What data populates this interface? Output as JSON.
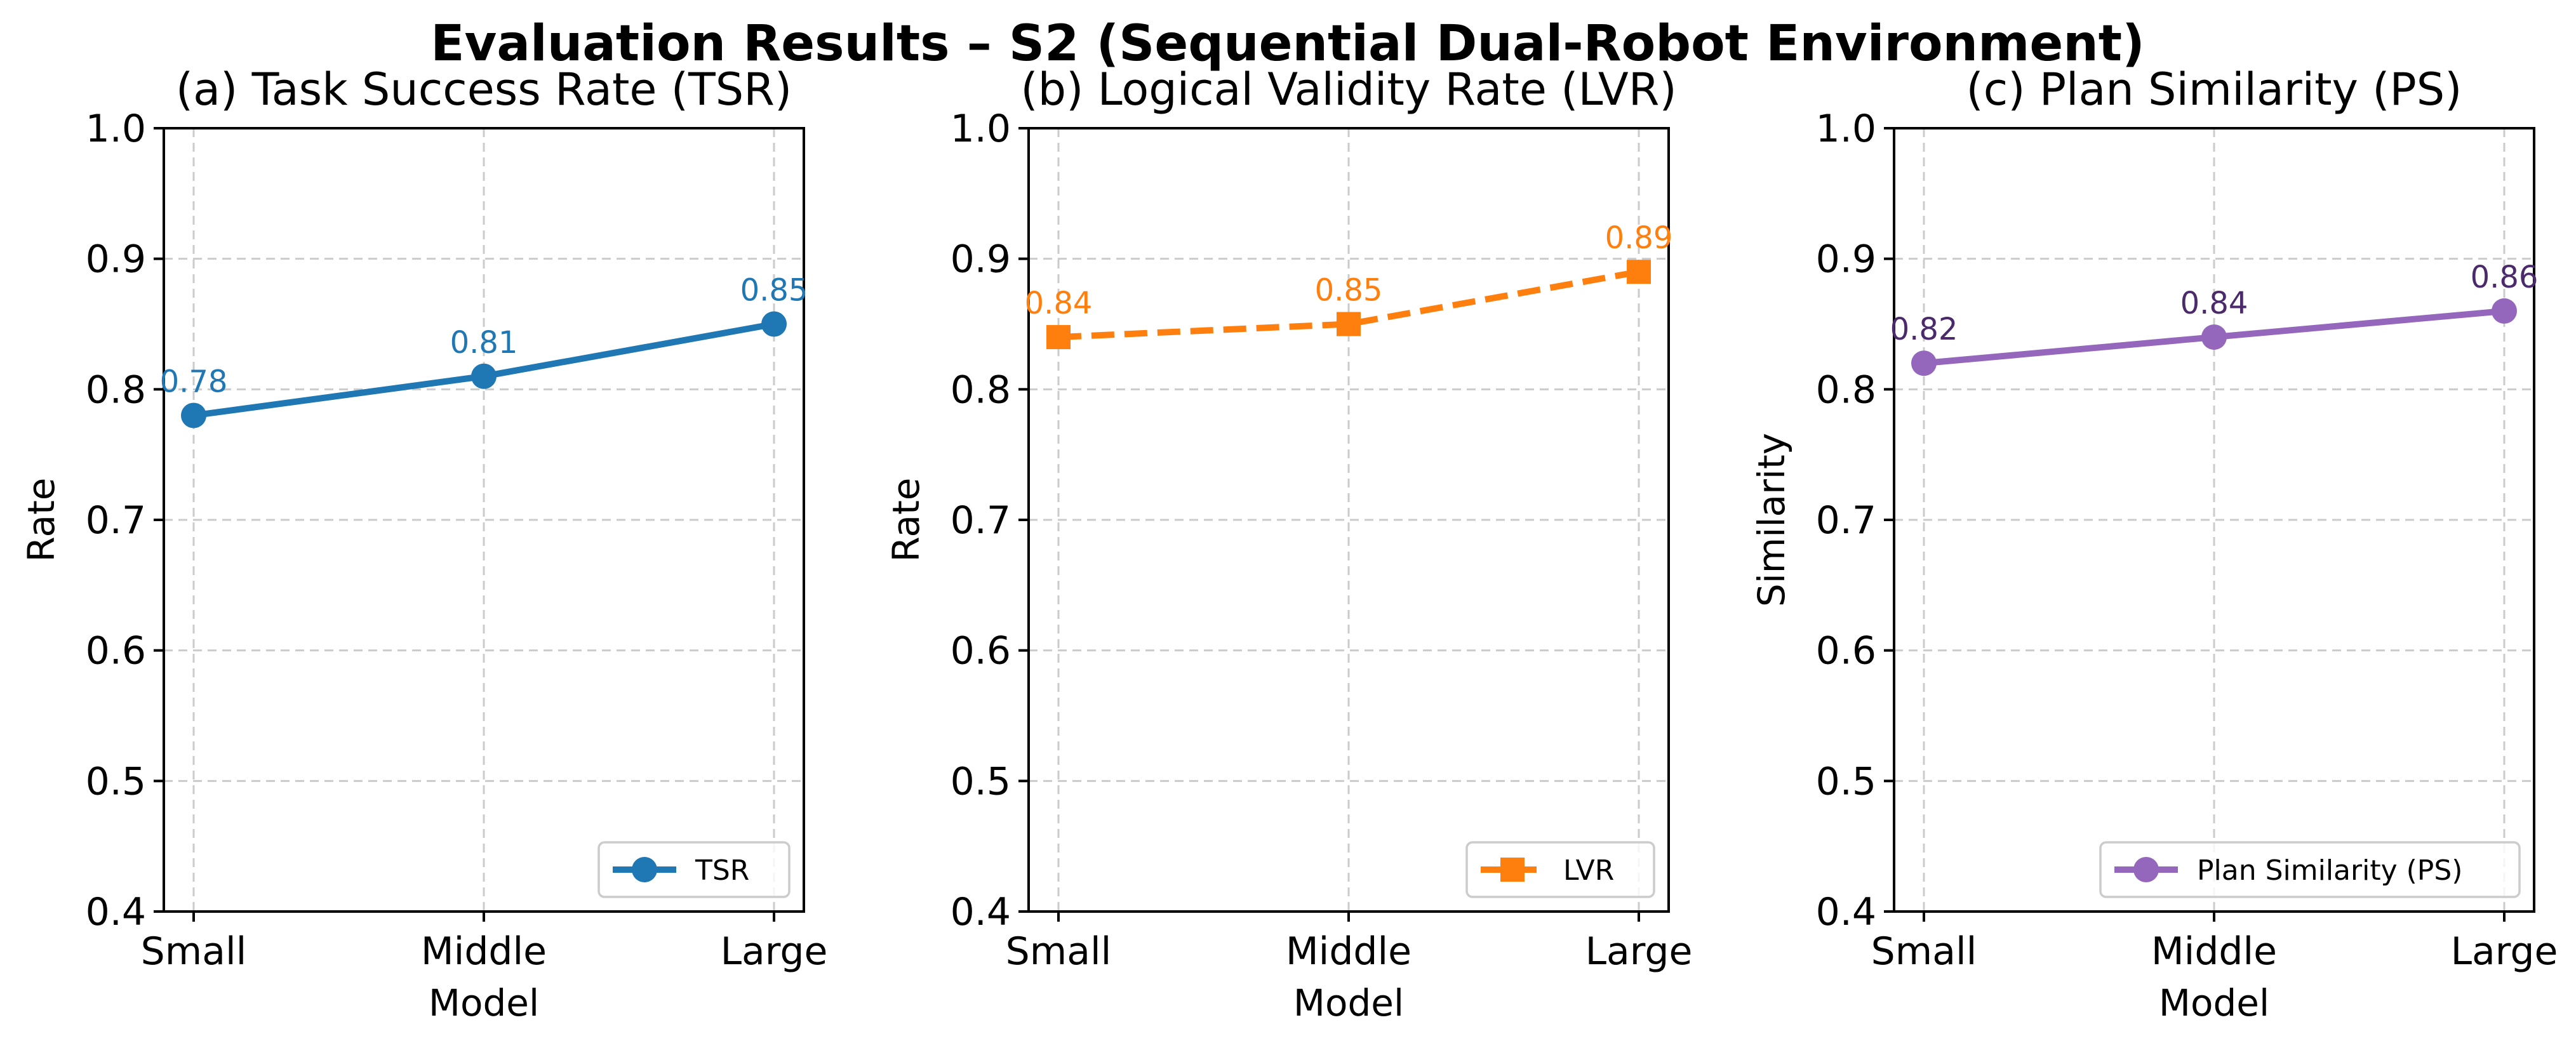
{
  "figure_title": "Evaluation Results – S2 (Sequential Dual-Robot Environment)",
  "chart_data": [
    {
      "type": "line",
      "title": "(a) Task Success Rate (TSR)",
      "xlabel": "Model",
      "ylabel": "Rate",
      "categories": [
        "Small",
        "Middle",
        "Large"
      ],
      "ylim": [
        0.4,
        1.0
      ],
      "yticks": [
        "0.4",
        "0.5",
        "0.6",
        "0.7",
        "0.8",
        "0.9",
        "1.0"
      ],
      "grid": true,
      "legend_position": "lower-right",
      "series": [
        {
          "name": "TSR",
          "values": [
            0.78,
            0.81,
            0.85
          ],
          "value_labels": [
            "0.78",
            "0.81",
            "0.85"
          ],
          "color": "#1f77b4",
          "label_color": "#1f77b4",
          "marker": "circle",
          "line_style": "solid"
        }
      ]
    },
    {
      "type": "line",
      "title": "(b) Logical Validity Rate (LVR)",
      "xlabel": "Model",
      "ylabel": "Rate",
      "categories": [
        "Small",
        "Middle",
        "Large"
      ],
      "ylim": [
        0.4,
        1.0
      ],
      "yticks": [
        "0.4",
        "0.5",
        "0.6",
        "0.7",
        "0.8",
        "0.9",
        "1.0"
      ],
      "grid": true,
      "legend_position": "lower-right",
      "series": [
        {
          "name": "LVR",
          "values": [
            0.84,
            0.85,
            0.89
          ],
          "value_labels": [
            "0.84",
            "0.85",
            "0.89"
          ],
          "color": "#ff7f0e",
          "label_color": "#ff7f0e",
          "marker": "square",
          "line_style": "dashed"
        }
      ]
    },
    {
      "type": "line",
      "title": "(c) Plan Similarity (PS)",
      "xlabel": "Model",
      "ylabel": "Similarity",
      "categories": [
        "Small",
        "Middle",
        "Large"
      ],
      "ylim": [
        0.4,
        1.0
      ],
      "yticks": [
        "0.4",
        "0.5",
        "0.6",
        "0.7",
        "0.8",
        "0.9",
        "1.0"
      ],
      "grid": true,
      "legend_position": "lower-right",
      "series": [
        {
          "name": "Plan Similarity (PS)",
          "values": [
            0.82,
            0.84,
            0.86
          ],
          "value_labels": [
            "0.82",
            "0.84",
            "0.86"
          ],
          "color": "#9467bd",
          "label_color": "#4b2a6b",
          "marker": "circle",
          "line_style": "solid"
        }
      ]
    }
  ]
}
